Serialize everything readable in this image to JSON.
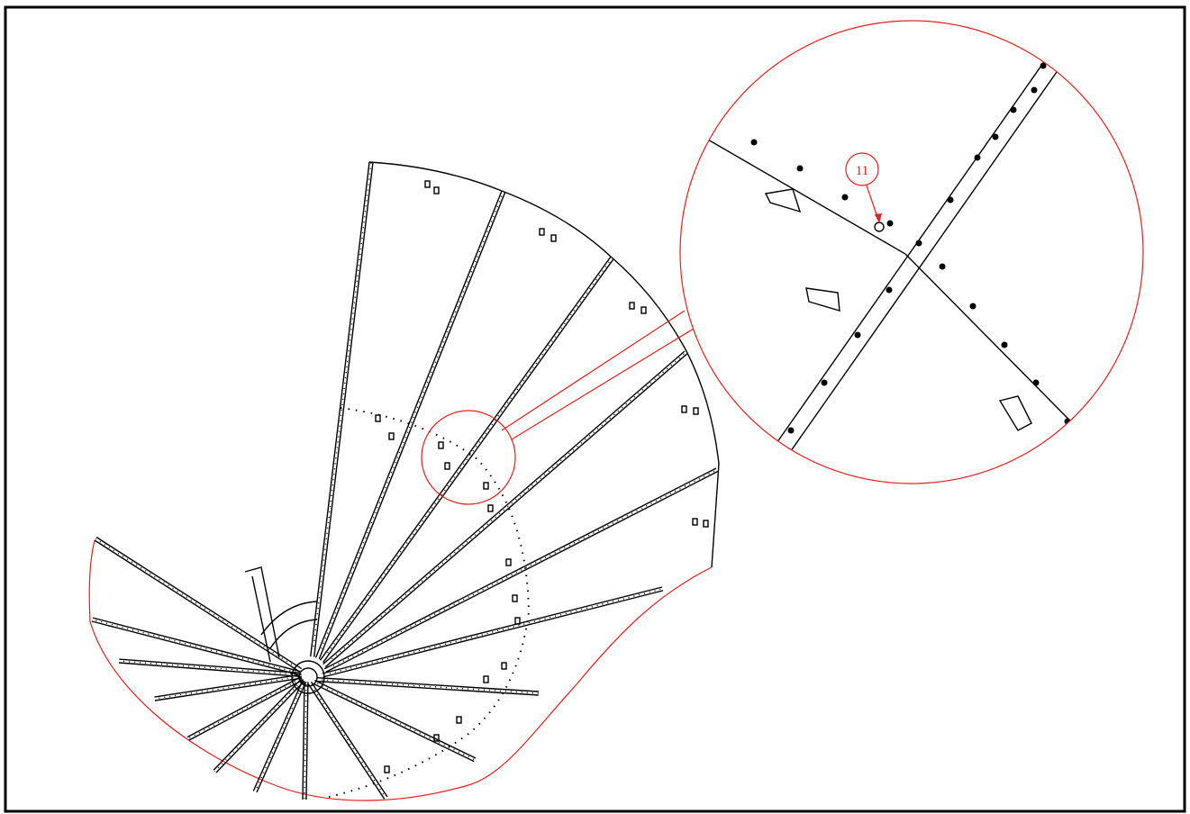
{
  "callout": {
    "label": "11"
  }
}
